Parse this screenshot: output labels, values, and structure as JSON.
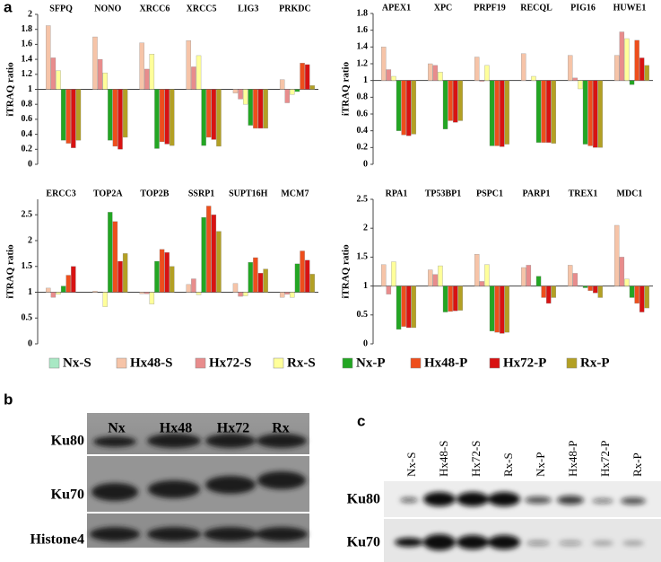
{
  "panels": [
    "a",
    "b",
    "c"
  ],
  "chart_data": [
    {
      "type": "bar",
      "y_label": "iTRAQ ratio",
      "bar_origin": 1,
      "ylim": [
        0,
        2
      ],
      "yticks": [
        0,
        0.2,
        0.4,
        0.6,
        0.8,
        1,
        1.2,
        1.4,
        1.6,
        1.8,
        2
      ],
      "categories": [
        "SFPQ",
        "NONO",
        "XRCC6",
        "XRCC5",
        "LIG3",
        "PRKDC"
      ],
      "series": [
        {
          "name": "Nx-S",
          "color": "#a8e8c4",
          "values": [
            1,
            1,
            1,
            1,
            1,
            1
          ]
        },
        {
          "name": "Hx48-S",
          "color": "#f6c4a8",
          "values": [
            1.85,
            1.7,
            1.62,
            1.65,
            0.95,
            1.13
          ]
        },
        {
          "name": "Hx72-S",
          "color": "#e88c8c",
          "values": [
            1.42,
            1.4,
            1.27,
            1.3,
            0.87,
            0.82
          ]
        },
        {
          "name": "Rx-S",
          "color": "#ffff9a",
          "values": [
            1.25,
            1.22,
            1.47,
            1.45,
            0.8,
            0.93
          ]
        },
        {
          "name": "Nx-P",
          "color": "#23a623",
          "values": [
            0.32,
            0.32,
            0.21,
            0.25,
            0.52,
            0.97
          ]
        },
        {
          "name": "Hx48-P",
          "color": "#ee4e1c",
          "values": [
            0.28,
            0.24,
            0.3,
            0.36,
            0.48,
            1.35
          ]
        },
        {
          "name": "Hx72-P",
          "color": "#d81212",
          "values": [
            0.22,
            0.2,
            0.27,
            0.33,
            0.48,
            1.33
          ]
        },
        {
          "name": "Rx-P",
          "color": "#b3a024",
          "values": [
            0.32,
            0.36,
            0.25,
            0.24,
            0.48,
            1.05
          ]
        }
      ]
    },
    {
      "type": "bar",
      "y_label": "iTRAQ ratio",
      "bar_origin": 1,
      "ylim": [
        0,
        1.8
      ],
      "yticks": [
        0,
        0.2,
        0.4,
        0.6,
        0.8,
        1,
        1.2,
        1.4,
        1.6,
        1.8
      ],
      "categories": [
        "APEX1",
        "XPC",
        "PRPF19",
        "RECQL",
        "PIG16",
        "HUWE1"
      ],
      "series": [
        {
          "values": [
            1,
            1,
            1,
            1,
            1,
            1
          ]
        },
        {
          "values": [
            1.4,
            1.2,
            1.28,
            1.32,
            1.3,
            1.3
          ]
        },
        {
          "values": [
            1.13,
            1.18,
            0.99,
            1.0,
            1.03,
            1.58
          ]
        },
        {
          "values": [
            1.05,
            1.1,
            1.18,
            1.05,
            0.9,
            1.5
          ]
        },
        {
          "values": [
            0.4,
            0.42,
            0.22,
            0.26,
            0.24,
            0.95
          ]
        },
        {
          "values": [
            0.35,
            0.52,
            0.22,
            0.26,
            0.22,
            1.48
          ]
        },
        {
          "values": [
            0.34,
            0.5,
            0.21,
            0.26,
            0.2,
            1.27
          ]
        },
        {
          "values": [
            0.36,
            0.52,
            0.24,
            0.25,
            0.2,
            1.18
          ]
        }
      ]
    },
    {
      "type": "bar",
      "y_label": "iTRAQ ratio",
      "bar_origin": 1,
      "ylim": [
        0,
        2.8
      ],
      "yticks": [
        0,
        0.5,
        1,
        1.5,
        2,
        2.5
      ],
      "categories": [
        "ERCC3",
        "TOP2A",
        "TOP2B",
        "SSRP1",
        "SUPT16H",
        "MCM7"
      ],
      "series": [
        {
          "values": [
            1,
            1,
            1,
            1,
            1,
            1
          ]
        },
        {
          "values": [
            1.08,
            1.02,
            0.97,
            1.15,
            1.17,
            0.9
          ]
        },
        {
          "values": [
            0.9,
            1.0,
            0.97,
            1.26,
            0.92,
            0.96
          ]
        },
        {
          "values": [
            0.96,
            0.72,
            0.77,
            0.95,
            0.93,
            0.9
          ]
        },
        {
          "values": [
            1.12,
            2.55,
            1.6,
            2.45,
            1.58,
            1.55
          ]
        },
        {
          "values": [
            1.33,
            2.37,
            1.83,
            2.67,
            1.67,
            1.8
          ]
        },
        {
          "values": [
            1.5,
            1.6,
            1.77,
            2.5,
            1.37,
            1.62
          ]
        },
        {
          "values": [
            1.0,
            1.75,
            1.5,
            2.18,
            1.45,
            1.35
          ]
        }
      ]
    },
    {
      "type": "bar",
      "y_label": "iTRAQ ratio",
      "bar_origin": 1,
      "ylim": [
        0,
        2.5
      ],
      "yticks": [
        0,
        0.5,
        1,
        1.5,
        2,
        2.5
      ],
      "categories": [
        "RPA1",
        "TP53BP1",
        "PSPC1",
        "PARP1",
        "TREX1",
        "MDC1"
      ],
      "series": [
        {
          "values": [
            1,
            1,
            1,
            1,
            1,
            1
          ]
        },
        {
          "values": [
            1.37,
            1.28,
            1.55,
            1.32,
            1.36,
            2.05
          ]
        },
        {
          "values": [
            0.86,
            1.2,
            1.08,
            1.36,
            1.22,
            1.5
          ]
        },
        {
          "values": [
            1.42,
            1.35,
            1.37,
            1.0,
            1.0,
            1.12
          ]
        },
        {
          "values": [
            0.25,
            0.55,
            0.22,
            1.17,
            0.97,
            0.8
          ]
        },
        {
          "values": [
            0.3,
            0.56,
            0.2,
            0.8,
            0.92,
            0.7
          ]
        },
        {
          "values": [
            0.28,
            0.57,
            0.18,
            0.7,
            0.88,
            0.55
          ]
        },
        {
          "values": [
            0.28,
            0.58,
            0.2,
            0.8,
            0.8,
            0.62
          ]
        }
      ]
    }
  ],
  "blot_b": {
    "lanes": [
      "Nx",
      "Hx48",
      "Hx72",
      "Rx"
    ],
    "rows": [
      "Ku80",
      "Ku70",
      "Histone4"
    ]
  },
  "blot_c": {
    "lanes": [
      "Nx-S",
      "Hx48-S",
      "Hx72-S",
      "Rx-S",
      "Nx-P",
      "Hx48-P",
      "Hx72-P",
      "Rx-P"
    ],
    "rows": [
      "Ku80",
      "Ku70"
    ]
  }
}
